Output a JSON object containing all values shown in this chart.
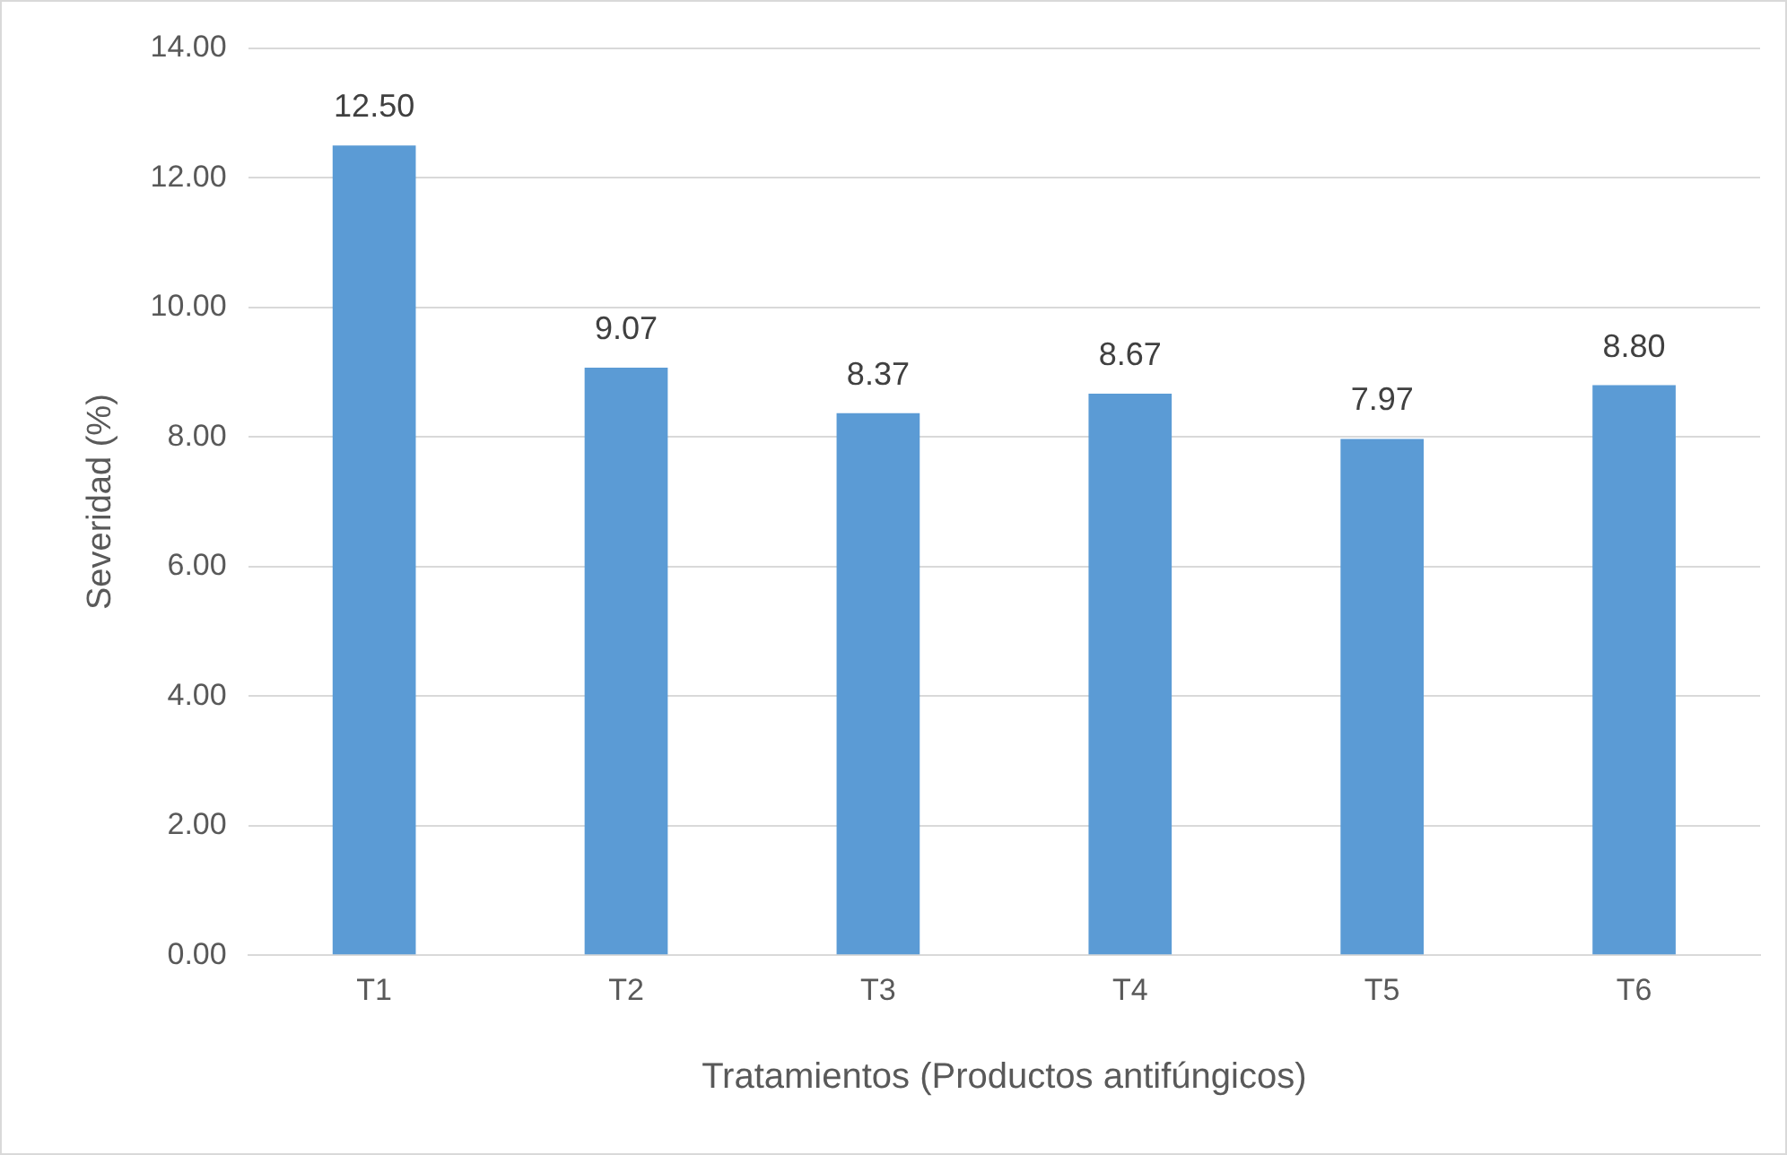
{
  "chart_data": {
    "type": "bar",
    "xlabel": "Tratamientos (Productos antifúngicos)",
    "ylabel": "Severidad (%)",
    "categories": [
      "T1",
      "T2",
      "T3",
      "T4",
      "T5",
      "T6"
    ],
    "values": [
      12.5,
      9.07,
      8.37,
      8.67,
      7.97,
      8.8
    ],
    "value_labels": [
      "12.50",
      "9.07",
      "8.37",
      "8.67",
      "7.97",
      "8.80"
    ],
    "color": "#5b9bd5",
    "ylim": [
      0,
      14
    ],
    "yticks": [
      {
        "value": 0,
        "label": "0.00"
      },
      {
        "value": 2,
        "label": "2.00"
      },
      {
        "value": 4,
        "label": "4.00"
      },
      {
        "value": 6,
        "label": "6.00"
      },
      {
        "value": 8,
        "label": "8.00"
      },
      {
        "value": 10,
        "label": "10.00"
      },
      {
        "value": 12,
        "label": "12.00"
      },
      {
        "value": 14,
        "label": "14.00"
      }
    ],
    "grid": "y"
  }
}
